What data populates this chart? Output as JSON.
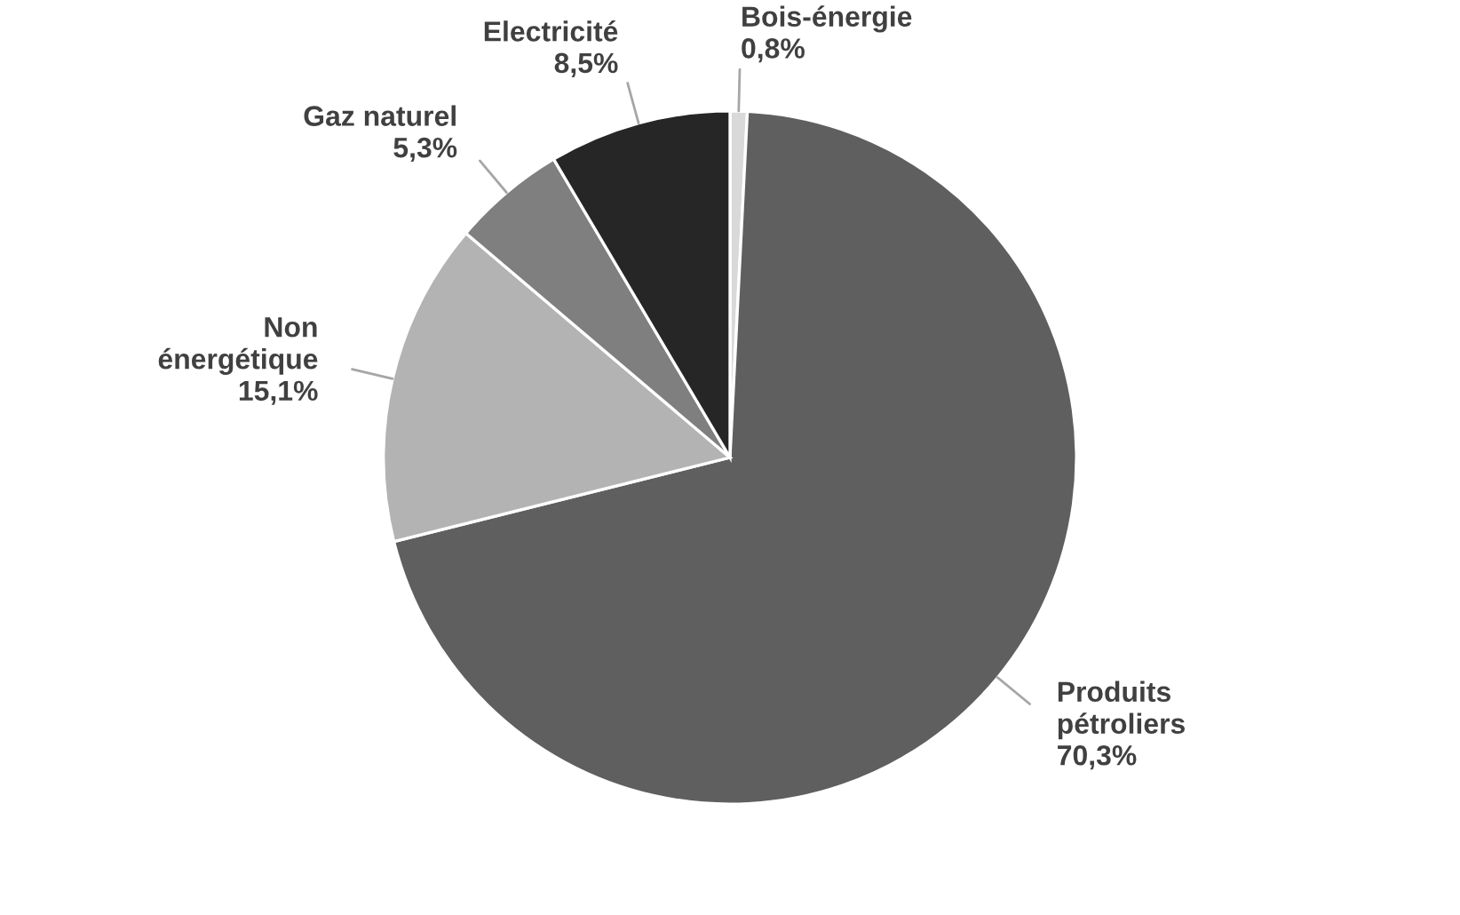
{
  "chart_data": {
    "type": "pie",
    "categories": [
      "Bois-énergie",
      "Produits\npétroliers",
      "Non\nénergétique",
      "Gaz naturel",
      "Electricité"
    ],
    "values": [
      0.8,
      70.3,
      15.1,
      5.3,
      8.5
    ],
    "value_labels": [
      "0,8%",
      "70,3%",
      "15,1%",
      "5,3%",
      "8,5%"
    ],
    "colors": [
      "#d9d9d9",
      "#5f5f5f",
      "#b3b3b3",
      "#7f7f7f",
      "#262626"
    ],
    "legend": false
  }
}
